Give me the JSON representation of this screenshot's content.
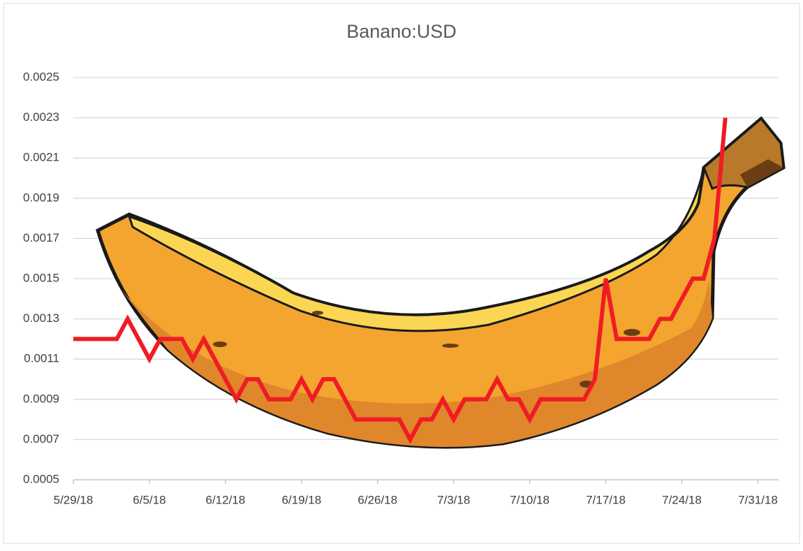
{
  "chart_data": {
    "type": "line",
    "title": "Banano:USD",
    "x": [
      "2018-05-29",
      "2018-05-30",
      "2018-05-31",
      "2018-06-01",
      "2018-06-02",
      "2018-06-03",
      "2018-06-04",
      "2018-06-05",
      "2018-06-06",
      "2018-06-07",
      "2018-06-08",
      "2018-06-09",
      "2018-06-10",
      "2018-06-11",
      "2018-06-12",
      "2018-06-13",
      "2018-06-14",
      "2018-06-15",
      "2018-06-16",
      "2018-06-17",
      "2018-06-18",
      "2018-06-19",
      "2018-06-20",
      "2018-06-21",
      "2018-06-22",
      "2018-06-23",
      "2018-06-24",
      "2018-06-25",
      "2018-06-26",
      "2018-06-27",
      "2018-06-28",
      "2018-06-29",
      "2018-06-30",
      "2018-07-01",
      "2018-07-02",
      "2018-07-03",
      "2018-07-04",
      "2018-07-05",
      "2018-07-06",
      "2018-07-07",
      "2018-07-08",
      "2018-07-09",
      "2018-07-10",
      "2018-07-11",
      "2018-07-12",
      "2018-07-13",
      "2018-07-14",
      "2018-07-15",
      "2018-07-16",
      "2018-07-17",
      "2018-07-18",
      "2018-07-19",
      "2018-07-20",
      "2018-07-21",
      "2018-07-22",
      "2018-07-23",
      "2018-07-24",
      "2018-07-25",
      "2018-07-26",
      "2018-07-27",
      "2018-07-28"
    ],
    "series": [
      {
        "color": "#f01c24",
        "values": [
          0.0012,
          0.0012,
          0.0012,
          0.0012,
          0.0012,
          0.0013,
          0.0012,
          0.0011,
          0.0012,
          0.0012,
          0.0012,
          0.0011,
          0.0012,
          0.0011,
          0.001,
          0.0009,
          0.001,
          0.001,
          0.0009,
          0.0009,
          0.0009,
          0.001,
          0.0009,
          0.001,
          0.001,
          0.0009,
          0.0008,
          0.0008,
          0.0008,
          0.0008,
          0.0008,
          0.0007,
          0.0008,
          0.0008,
          0.0009,
          0.0008,
          0.0009,
          0.0009,
          0.0009,
          0.001,
          0.0009,
          0.0009,
          0.0008,
          0.0009,
          0.0009,
          0.0009,
          0.0009,
          0.0009,
          0.001,
          0.0015,
          0.0012,
          0.0012,
          0.0012,
          0.0012,
          0.0013,
          0.0013,
          0.0014,
          0.0015,
          0.0015,
          0.0017,
          0.0023
        ]
      }
    ],
    "xlim": [
      "2018-05-29",
      "2018-08-01"
    ],
    "xticks": [
      {
        "value": "2018-05-29",
        "label": "5/29/18"
      },
      {
        "value": "2018-06-05",
        "label": "6/5/18"
      },
      {
        "value": "2018-06-12",
        "label": "6/12/18"
      },
      {
        "value": "2018-06-19",
        "label": "6/19/18"
      },
      {
        "value": "2018-06-26",
        "label": "6/26/18"
      },
      {
        "value": "2018-07-03",
        "label": "7/3/18"
      },
      {
        "value": "2018-07-10",
        "label": "7/10/18"
      },
      {
        "value": "2018-07-17",
        "label": "7/17/18"
      },
      {
        "value": "2018-07-24",
        "label": "7/24/18"
      },
      {
        "value": "2018-07-31",
        "label": "7/31/18"
      }
    ],
    "ylim": [
      0.0005,
      0.0025
    ],
    "yticks": [
      0.0005,
      0.0007,
      0.0009,
      0.0011,
      0.0013,
      0.0015,
      0.0017,
      0.0019,
      0.0021,
      0.0023,
      0.0025
    ],
    "grid": true
  }
}
